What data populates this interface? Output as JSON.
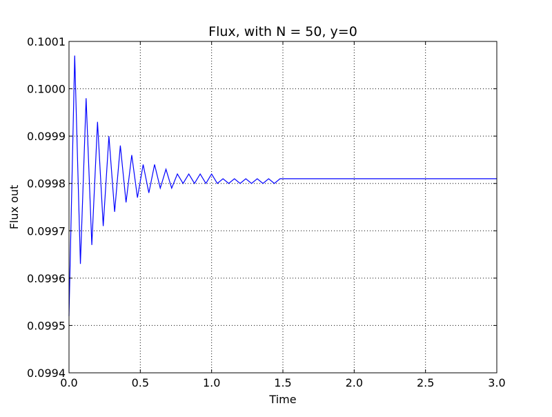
{
  "chart_data": {
    "type": "line",
    "title": "Flux, with N = 50, y=0",
    "xlabel": "Time",
    "ylabel": "Flux out",
    "xlim": [
      0.0,
      3.0
    ],
    "ylim": [
      0.0994,
      0.1001
    ],
    "grid": true,
    "line_color": "#0000ff",
    "xticks": [
      "0.0",
      "0.5",
      "1.0",
      "1.5",
      "2.0",
      "2.5",
      "3.0"
    ],
    "yticks": [
      "0.0994",
      "0.0995",
      "0.0996",
      "0.0997",
      "0.0998",
      "0.0999",
      "0.1000",
      "0.1001"
    ],
    "series": [
      {
        "x": [
          0.0,
          0.04,
          0.08,
          0.12,
          0.16,
          0.2,
          0.24,
          0.28,
          0.32,
          0.36,
          0.4,
          0.44,
          0.48,
          0.52,
          0.56,
          0.6,
          0.64,
          0.68,
          0.72,
          0.76,
          0.8,
          0.84,
          0.88,
          0.92,
          0.96,
          1.0,
          1.04,
          1.08,
          1.12,
          1.16,
          1.2,
          1.24,
          1.28,
          1.32,
          1.36,
          1.4,
          1.44,
          1.48,
          1.52,
          1.56,
          1.6,
          1.64,
          1.68,
          1.72,
          1.76,
          1.8,
          1.84,
          1.88,
          1.92,
          1.96,
          2.0,
          2.5,
          3.0
        ],
        "y": [
          0.09952,
          0.10007,
          0.09963,
          0.09998,
          0.09967,
          0.09993,
          0.09971,
          0.0999,
          0.09974,
          0.09988,
          0.09976,
          0.09986,
          0.09977,
          0.09984,
          0.09978,
          0.09984,
          0.09979,
          0.09983,
          0.09979,
          0.09982,
          0.0998,
          0.09982,
          0.0998,
          0.09982,
          0.0998,
          0.09982,
          0.0998,
          0.09981,
          0.0998,
          0.09981,
          0.0998,
          0.09981,
          0.0998,
          0.09981,
          0.0998,
          0.09981,
          0.0998,
          0.09981,
          0.09981,
          0.09981,
          0.09981,
          0.09981,
          0.09981,
          0.09981,
          0.09981,
          0.09981,
          0.09981,
          0.09981,
          0.09981,
          0.09981,
          0.09981,
          0.09981,
          0.09981
        ]
      }
    ]
  }
}
